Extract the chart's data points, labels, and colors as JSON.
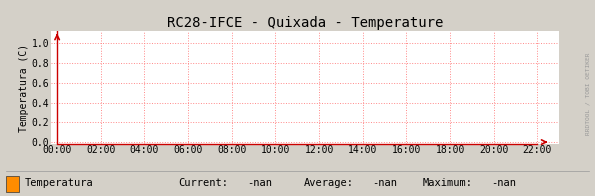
{
  "title": "RC28-IFCE - Quixada - Temperature",
  "ylabel": "Temperatura (C)",
  "background_color": "#d4d0c8",
  "plot_bg_color": "#ffffff",
  "grid_color": "#ff8888",
  "yticks": [
    0.0,
    0.2,
    0.4,
    0.6,
    0.8,
    1.0
  ],
  "ylim": [
    -0.02,
    1.12
  ],
  "xtick_labels": [
    "00:00",
    "02:00",
    "04:00",
    "06:00",
    "08:00",
    "10:00",
    "12:00",
    "14:00",
    "16:00",
    "18:00",
    "20:00",
    "22:00"
  ],
  "xlim": [
    -0.3,
    23.0
  ],
  "xtick_positions": [
    0,
    2,
    4,
    6,
    8,
    10,
    12,
    14,
    16,
    18,
    20,
    22
  ],
  "arrow_color": "#cc0000",
  "legend_patch_color": "#ff8c00",
  "legend_label": "Temperatura",
  "legend_current_label": "Current:",
  "legend_current_value": "-nan",
  "legend_average_label": "Average:",
  "legend_average_value": "-nan",
  "legend_maximum_label": "Maximum:",
  "legend_maximum_value": "-nan",
  "title_fontsize": 10,
  "axis_fontsize": 7,
  "legend_fontsize": 7.5,
  "watermark_text": "RRDTOOL / TOBI OETIKER",
  "tick_color": "#000000"
}
